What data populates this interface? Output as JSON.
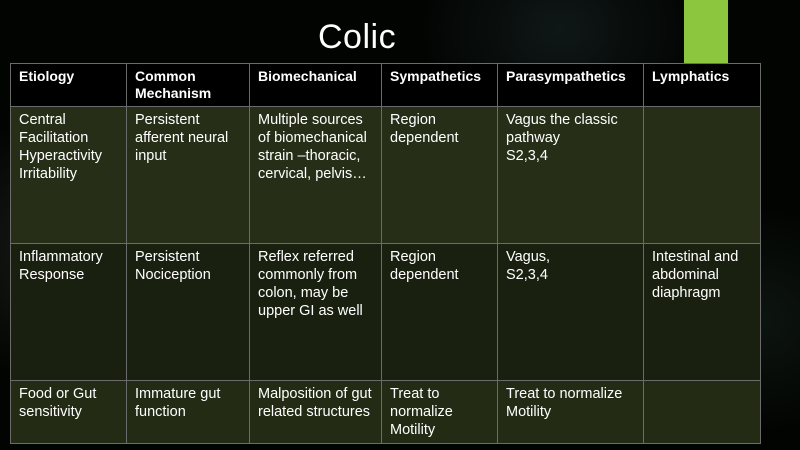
{
  "slide": {
    "title": "Colic",
    "accent_color": "#8cc63f"
  },
  "table": {
    "headers": [
      "Etiology",
      "Common Mechanism",
      "Biomechanical",
      "Sympathetics",
      "Parasympathetics",
      "Lymphatics"
    ],
    "rows": [
      [
        [
          "Central",
          "Facilitation",
          "Hyperactivity",
          "Irritability"
        ],
        [
          "Persistent afferent neural input"
        ],
        [
          "Multiple sources of biomechanical strain –thoracic, cervical, pelvis…"
        ],
        [
          "Region dependent"
        ],
        [
          "Vagus the classic pathway",
          "S2,3,4"
        ],
        [
          ""
        ]
      ],
      [
        [
          "Inflammatory Response"
        ],
        [
          "Persistent Nociception"
        ],
        [
          "Reflex referred commonly from colon, may be upper GI as well"
        ],
        [
          "Region dependent"
        ],
        [
          "Vagus,",
          "S2,3,4"
        ],
        [
          "Intestinal and abdominal diaphragm"
        ]
      ],
      [
        [
          "Food or Gut sensitivity"
        ],
        [
          "Immature gut function"
        ],
        [
          "Malposition of gut related structures"
        ],
        [
          "Treat to normalize Motility"
        ],
        [
          "Treat to normalize Motility"
        ],
        [
          ""
        ]
      ]
    ]
  }
}
